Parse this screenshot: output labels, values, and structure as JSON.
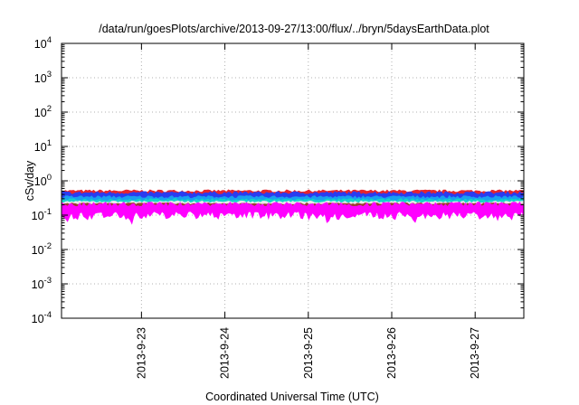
{
  "chart_data": {
    "type": "area",
    "title": "/data/run/goesPlots/archive/2013-09-27/13:00/flux/../bryn/5daysEarthData.plot",
    "xlabel": "Coordinated Universal Time (UTC)",
    "ylabel": "cSv/day",
    "yscale": "log",
    "ylim": [
      0.0001,
      10000
    ],
    "y_ticks": [
      {
        "base": "10",
        "exp": "4"
      },
      {
        "base": "10",
        "exp": "3"
      },
      {
        "base": "10",
        "exp": "2"
      },
      {
        "base": "10",
        "exp": "1"
      },
      {
        "base": "10",
        "exp": "0"
      },
      {
        "base": "10",
        "exp": "-1"
      },
      {
        "base": "10",
        "exp": "-2"
      },
      {
        "base": "10",
        "exp": "-3"
      },
      {
        "base": "10",
        "exp": "-4"
      }
    ],
    "xlim": [
      "2013-09-22 01:00",
      "2013-09-27 14:00"
    ],
    "x_ticks": [
      "2013-9-23",
      "2013-9-24",
      "2013-9-25",
      "2013-9-26",
      "2013-9-27"
    ],
    "grid": true,
    "series": [
      {
        "color": "#e8242b",
        "level": 0.42,
        "spread": 0.1
      },
      {
        "color": "#2a3cf0",
        "level": 0.36,
        "spread": 0.1
      },
      {
        "color": "#1a9ff0",
        "level": 0.28,
        "spread": 0.07
      },
      {
        "color": "#13d6c8",
        "level": 0.24,
        "spread": 0.05
      },
      {
        "color": "#e8e8e8",
        "level": 0.21,
        "spread": 0.04
      },
      {
        "color": "#9b3f2f",
        "level": 0.19,
        "spread": 0.03
      },
      {
        "color": "#ff00ff",
        "level": 0.15,
        "spread": 0.07
      }
    ]
  }
}
